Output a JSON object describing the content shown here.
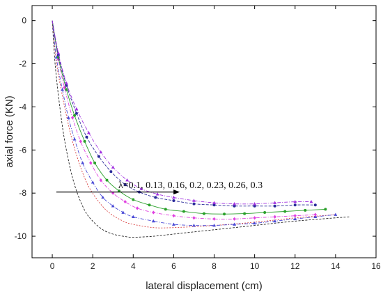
{
  "chart_data": {
    "type": "line",
    "title": "",
    "xlabel": "lateral displacement (cm)",
    "ylabel": "axial force (KN)",
    "xlim": [
      -1,
      16
    ],
    "ylim": [
      -11,
      0.7
    ],
    "xticks": [
      0,
      2,
      4,
      6,
      8,
      10,
      12,
      14,
      16
    ],
    "yticks": [
      0,
      -2,
      -4,
      -6,
      -8,
      -10
    ],
    "grid": false,
    "legend": "none",
    "annotation": {
      "text": "λ=0.1, 0.13, 0.16, 0.2, 0.23, 0.26, 0.3",
      "arrow_from": [
        0.2,
        -7.95
      ],
      "arrow_to": [
        6.3,
        -7.95
      ]
    },
    "series": [
      {
        "lambda": 0.1,
        "color": "#222222",
        "marker": "none",
        "dash": "3,2",
        "x": [
          0,
          0.1,
          0.2,
          0.4,
          0.6,
          0.9,
          1.2,
          1.6,
          2.0,
          2.5,
          3.0,
          3.5,
          4.0,
          5.0,
          6.0,
          8.0,
          10.0,
          12.0,
          14.7
        ],
        "y": [
          0,
          -1.5,
          -2.6,
          -4.2,
          -5.5,
          -6.9,
          -7.9,
          -8.8,
          -9.3,
          -9.7,
          -9.9,
          -10.0,
          -10.05,
          -10.0,
          -9.9,
          -9.7,
          -9.5,
          -9.3,
          -9.1
        ]
      },
      {
        "lambda": 0.13,
        "color": "#d94040",
        "marker": "none",
        "dash": "2,2",
        "x": [
          0,
          0.2,
          0.4,
          0.7,
          1.0,
          1.4,
          1.8,
          2.3,
          2.8,
          3.5,
          4.0,
          5.0,
          6.0,
          8.0,
          10.0,
          12.0,
          14.0
        ],
        "y": [
          0,
          -1.9,
          -3.0,
          -4.4,
          -5.6,
          -6.8,
          -7.7,
          -8.4,
          -8.9,
          -9.3,
          -9.45,
          -9.6,
          -9.6,
          -9.5,
          -9.35,
          -9.15,
          -9.0
        ]
      },
      {
        "lambda": 0.16,
        "color": "#4a4ad6",
        "marker": "triangle",
        "dash": "5,2,1,2",
        "x": [
          0,
          0.2,
          0.5,
          0.8,
          1.1,
          1.5,
          2.0,
          2.5,
          3.0,
          3.5,
          4.0,
          5.0,
          6.0,
          7.0,
          8.0,
          9.0,
          10.0,
          11.0,
          12.0,
          13.0,
          14.0
        ],
        "y": [
          0,
          -1.7,
          -3.2,
          -4.5,
          -5.5,
          -6.6,
          -7.5,
          -8.2,
          -8.6,
          -8.9,
          -9.1,
          -9.3,
          -9.45,
          -9.5,
          -9.5,
          -9.45,
          -9.4,
          -9.3,
          -9.2,
          -9.1,
          -9.0
        ]
      },
      {
        "lambda": 0.2,
        "color": "#e040e0",
        "marker": "diamond",
        "dash": "5,2,1,2",
        "x": [
          0,
          0.3,
          0.6,
          1.0,
          1.4,
          1.9,
          2.4,
          3.0,
          3.6,
          4.2,
          5.0,
          6.0,
          7.0,
          8.0,
          9.0,
          10.0,
          11.0,
          12.0,
          13.0
        ],
        "y": [
          0,
          -1.8,
          -3.1,
          -4.5,
          -5.6,
          -6.6,
          -7.4,
          -8.0,
          -8.4,
          -8.7,
          -8.9,
          -9.05,
          -9.15,
          -9.2,
          -9.2,
          -9.15,
          -9.1,
          -9.05,
          -9.0
        ]
      },
      {
        "lambda": 0.23,
        "color": "#2aa02a",
        "marker": "circle",
        "dash": "",
        "x": [
          0,
          0.3,
          0.7,
          1.1,
          1.6,
          2.1,
          2.7,
          3.3,
          4.0,
          4.8,
          5.6,
          6.5,
          7.5,
          8.5,
          9.5,
          10.5,
          11.5,
          12.5,
          13.5
        ],
        "y": [
          0,
          -1.7,
          -3.2,
          -4.4,
          -5.6,
          -6.6,
          -7.4,
          -7.9,
          -8.3,
          -8.55,
          -8.75,
          -8.85,
          -8.95,
          -8.97,
          -8.95,
          -8.9,
          -8.85,
          -8.8,
          -8.75
        ]
      },
      {
        "lambda": 0.26,
        "color": "#2a2a9a",
        "marker": "circle",
        "dash": "4,2",
        "x": [
          0,
          0.3,
          0.7,
          1.2,
          1.7,
          2.3,
          2.9,
          3.6,
          4.3,
          5.1,
          6.0,
          7.0,
          8.0,
          9.0,
          10.0,
          11.0,
          12.0,
          13.0
        ],
        "y": [
          0,
          -1.6,
          -3.0,
          -4.3,
          -5.4,
          -6.3,
          -7.0,
          -7.6,
          -7.95,
          -8.2,
          -8.35,
          -8.5,
          -8.55,
          -8.6,
          -8.6,
          -8.6,
          -8.55,
          -8.55
        ]
      },
      {
        "lambda": 0.3,
        "color": "#a030e0",
        "marker": "triangle",
        "dash": "5,2,1,2",
        "x": [
          0,
          0.3,
          0.7,
          1.2,
          1.8,
          2.4,
          3.0,
          3.7,
          4.4,
          5.2,
          6.0,
          7.0,
          8.0,
          9.0,
          10.0,
          11.0,
          12.0,
          12.8
        ],
        "y": [
          0,
          -1.5,
          -2.9,
          -4.1,
          -5.2,
          -6.1,
          -6.8,
          -7.4,
          -7.8,
          -8.05,
          -8.2,
          -8.35,
          -8.45,
          -8.5,
          -8.5,
          -8.45,
          -8.4,
          -8.4
        ]
      }
    ]
  }
}
